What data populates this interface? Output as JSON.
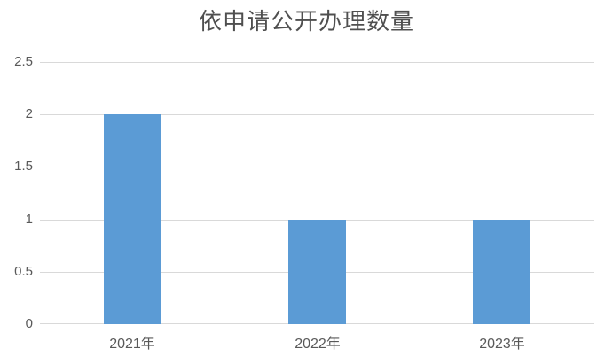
{
  "chart_data": {
    "type": "bar",
    "title": "依申请公开办理数量",
    "categories": [
      "2021年",
      "2022年",
      "2023年"
    ],
    "values": [
      2,
      1,
      1
    ],
    "series": [
      {
        "name": "依申请公开办理数量",
        "values": [
          2,
          1,
          1
        ]
      }
    ],
    "xlabel": "",
    "ylabel": "",
    "ylim": [
      0,
      2.5
    ],
    "yticks": [
      "0",
      "0.5",
      "1",
      "1.5",
      "2",
      "2.5"
    ],
    "grid": "horizontal",
    "legend": "none",
    "colors": {
      "bar": "#5B9BD5",
      "gridline": "#D9D9D9",
      "axis_line": "#D9D9D9",
      "tick_label": "#595959",
      "title": "#4F4F4F",
      "background": "#FFFFFF"
    }
  }
}
